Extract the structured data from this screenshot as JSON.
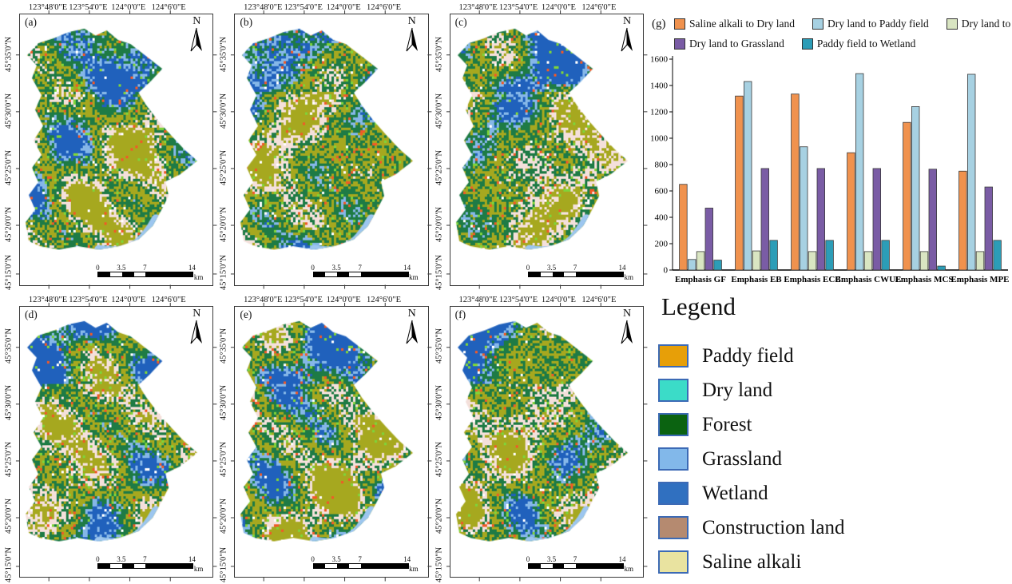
{
  "map_panels": {
    "letters": [
      "(a)",
      "(b)",
      "(c)",
      "(d)",
      "(e)",
      "(f)"
    ],
    "top_axis_labels": [
      "123°48'0\"E",
      "123°54'0\"E",
      "124°0'0\"E",
      "124°6'0\"E"
    ],
    "left_axis_labels": [
      "45°35'0\"N",
      "45°30'0\"N",
      "45°25'0\"N",
      "45°20'0\"N",
      "45°15'0\"N"
    ],
    "north_label": "N",
    "scale_bar": {
      "tick_labels": [
        "0",
        "3.5",
        "7",
        "14"
      ],
      "unit": "km"
    },
    "land_colors": {
      "forest": "#1E7B45",
      "cropland_olive": "#A6A81F",
      "wetland": "#2061BC",
      "grassland": "#85B7E8",
      "saline_pink": "#F4E0DB",
      "construction_orange": "#F05A28",
      "dryland_lime": "#7FD43A",
      "water": "#9CC6EF",
      "background": "#FFFFFF"
    }
  },
  "chart_data": {
    "type": "bar",
    "panel_label": "(g)",
    "title": "",
    "xlabel": "",
    "ylabel": "",
    "categories": [
      "Emphasis GF",
      "Emphasis EB",
      "Emphasis ECB",
      "Emphasis CWUE",
      "Emphasis MCS",
      "Emphasis MPE"
    ],
    "series": [
      {
        "name": "Saline alkali  to Dry land",
        "color": "#F0924E",
        "values": [
          650,
          1320,
          1335,
          890,
          1120,
          750
        ]
      },
      {
        "name": "Dry land to Paddy field",
        "color": "#A7D1E2",
        "values": [
          80,
          1430,
          935,
          1490,
          1240,
          1485
        ]
      },
      {
        "name": "Dry land to Forest",
        "color": "#D9E5C2",
        "values": [
          140,
          145,
          140,
          140,
          140,
          140
        ]
      },
      {
        "name": "Dry land to Grassland",
        "color": "#7A5CA5",
        "values": [
          470,
          770,
          770,
          770,
          765,
          630
        ]
      },
      {
        "name": "Paddy field to Wetland",
        "color": "#2C9DB7",
        "values": [
          75,
          225,
          225,
          225,
          30,
          225
        ]
      }
    ],
    "ylim": [
      0,
      1600
    ],
    "ytick_step": 200,
    "legend_position": "top",
    "grid": false,
    "legend_rows": [
      3,
      2
    ]
  },
  "legend": {
    "title": "Legend",
    "swatch_border_color": "#3C6AB5",
    "items": [
      {
        "label": "Paddy field",
        "color": "#E79F08"
      },
      {
        "label": "Dry land",
        "color": "#3BDCC8"
      },
      {
        "label": "Forest",
        "color": "#0B6311"
      },
      {
        "label": "Grassland",
        "color": "#82B8EA"
      },
      {
        "label": "Wetland",
        "color": "#3070C0"
      },
      {
        "label": "Construction land",
        "color": "#B58A70"
      },
      {
        "label": "Saline alkali",
        "color": "#E9E3A0"
      }
    ]
  }
}
